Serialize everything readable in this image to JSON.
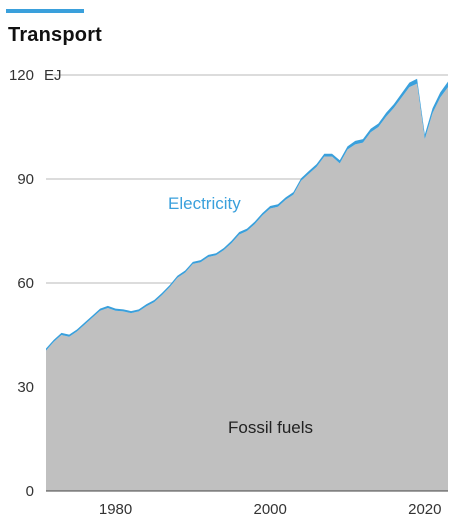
{
  "chart_data": {
    "type": "area",
    "title": "Transport",
    "unit": "EJ",
    "ylim": [
      0,
      120
    ],
    "yticks": [
      0,
      30,
      60,
      90,
      120
    ],
    "xlim": [
      1971,
      2023
    ],
    "xticks": [
      1980,
      2000,
      2020
    ],
    "x": [
      1971,
      1972,
      1973,
      1974,
      1975,
      1976,
      1977,
      1978,
      1979,
      1980,
      1981,
      1982,
      1983,
      1984,
      1985,
      1986,
      1987,
      1988,
      1989,
      1990,
      1991,
      1992,
      1993,
      1994,
      1995,
      1996,
      1997,
      1998,
      1999,
      2000,
      2001,
      2002,
      2003,
      2004,
      2005,
      2006,
      2007,
      2008,
      2009,
      2010,
      2011,
      2012,
      2013,
      2014,
      2015,
      2016,
      2017,
      2018,
      2019,
      2020,
      2021,
      2022,
      2023
    ],
    "series": [
      {
        "name": "Fossil fuels",
        "color": "#c0c0c0",
        "values": [
          40.5,
          43,
          45,
          44.5,
          46,
          48,
          50,
          52,
          52.8,
          52,
          51.8,
          51.3,
          51.8,
          53.3,
          54.5,
          56.5,
          58.8,
          61.5,
          63,
          65.5,
          66,
          67.5,
          68,
          69.5,
          71.5,
          74,
          75,
          77,
          79.5,
          81.5,
          82,
          84,
          85.5,
          89.5,
          91.5,
          93.5,
          96.5,
          96.5,
          94.5,
          98.5,
          100,
          100.5,
          103.5,
          105,
          108,
          110.5,
          113.5,
          116.5,
          117.5,
          101.5,
          109,
          113.5,
          116.5
        ]
      },
      {
        "name": "Electricity",
        "color": "#3aa0dc",
        "values": [
          0.6,
          0.6,
          0.6,
          0.6,
          0.6,
          0.6,
          0.6,
          0.6,
          0.6,
          0.6,
          0.6,
          0.6,
          0.6,
          0.6,
          0.6,
          0.6,
          0.6,
          0.6,
          0.6,
          0.6,
          0.6,
          0.6,
          0.6,
          0.6,
          0.7,
          0.7,
          0.7,
          0.7,
          0.7,
          0.7,
          0.7,
          0.7,
          0.7,
          0.7,
          0.8,
          0.8,
          0.8,
          0.8,
          0.9,
          0.9,
          1.0,
          1.0,
          1.0,
          1.0,
          1.1,
          1.1,
          1.2,
          1.3,
          1.4,
          1.3,
          1.4,
          1.5,
          1.6
        ]
      }
    ],
    "labels": {
      "electricity": "Electricity",
      "fossil": "Fossil fuels"
    }
  }
}
